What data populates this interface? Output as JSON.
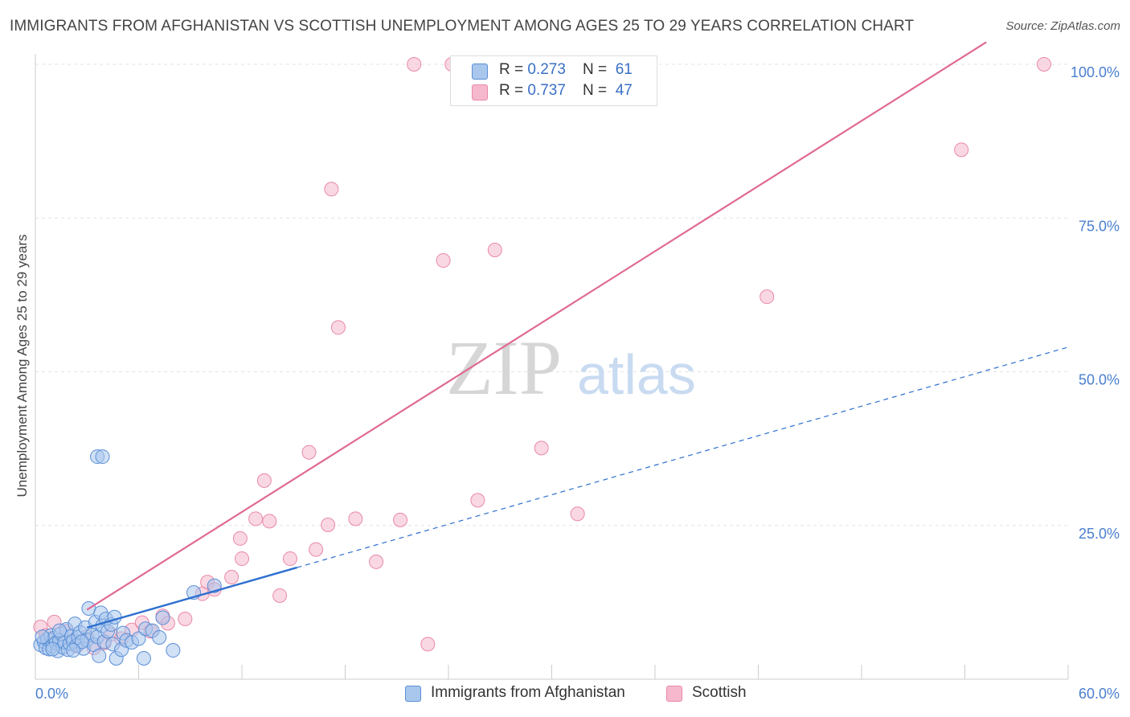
{
  "title": "IMMIGRANTS FROM AFGHANISTAN VS SCOTTISH UNEMPLOYMENT AMONG AGES 25 TO 29 YEARS CORRELATION CHART",
  "source": "Source: ZipAtlas.com",
  "watermark": {
    "zip": "ZIP",
    "atlas": "atlas"
  },
  "legend_top": {
    "rows": [
      {
        "r_label": "R = ",
        "r_value": "0.273",
        "n_label": "N = ",
        "n_value": "61"
      },
      {
        "r_label": "R = ",
        "r_value": "0.737",
        "n_label": "N = ",
        "n_value": "47"
      }
    ]
  },
  "legend_bottom": {
    "items": [
      "Immigrants from Afghanistan",
      "Scottish"
    ]
  },
  "colors": {
    "blue_fill": "#a9c7ec",
    "blue_stroke": "#5b8fd6",
    "blue_line": "#2e6fd0",
    "pink_fill": "#f6b8cc",
    "pink_stroke": "#e889a8",
    "pink_line": "#e06a93",
    "tick_text": "#4a7fcf",
    "grid": "#e3e3e3"
  },
  "chart_data": {
    "type": "scatter",
    "title": "IMMIGRANTS FROM AFGHANISTAN VS SCOTTISH UNEMPLOYMENT AMONG AGES 25 TO 29 YEARS CORRELATION CHART",
    "xlabel": "",
    "ylabel": "Unemployment Among Ages 25 to 29 years",
    "xlim": [
      0,
      60
    ],
    "ylim": [
      0,
      100
    ],
    "x_tick_labels": [
      "0.0%",
      "60.0%"
    ],
    "y_tick_labels": [
      "25.0%",
      "50.0%",
      "75.0%",
      "100.0%"
    ],
    "y_ticks": [
      25,
      50,
      75,
      100
    ],
    "series": [
      {
        "name": "Immigrants from Afghanistan",
        "r": 0.273,
        "n": 61,
        "trend": {
          "x0": 0,
          "y0": 6.0,
          "x1": 60,
          "y1": 54.0,
          "solid_until_x": 15.2
        },
        "points": [
          [
            0.3,
            5.6
          ],
          [
            0.5,
            6.1
          ],
          [
            0.6,
            5.1
          ],
          [
            0.7,
            6.5
          ],
          [
            0.8,
            4.9
          ],
          [
            0.9,
            7.1
          ],
          [
            1.0,
            5.4
          ],
          [
            1.1,
            6.7
          ],
          [
            1.2,
            5.9
          ],
          [
            1.3,
            4.6
          ],
          [
            1.4,
            6.3
          ],
          [
            1.5,
            7.4
          ],
          [
            1.6,
            5.2
          ],
          [
            1.7,
            6.0
          ],
          [
            1.8,
            8.1
          ],
          [
            1.9,
            4.8
          ],
          [
            2.0,
            5.8
          ],
          [
            2.1,
            7.0
          ],
          [
            2.2,
            6.2
          ],
          [
            2.3,
            9.0
          ],
          [
            2.4,
            5.5
          ],
          [
            2.5,
            6.8
          ],
          [
            2.6,
            7.6
          ],
          [
            2.8,
            5.0
          ],
          [
            2.9,
            8.4
          ],
          [
            3.0,
            6.4
          ],
          [
            3.1,
            11.5
          ],
          [
            3.3,
            7.2
          ],
          [
            3.4,
            5.6
          ],
          [
            3.5,
            9.3
          ],
          [
            3.6,
            6.9
          ],
          [
            3.8,
            10.8
          ],
          [
            3.9,
            8.7
          ],
          [
            4.0,
            6.1
          ],
          [
            4.1,
            9.8
          ],
          [
            4.2,
            7.8
          ],
          [
            4.4,
            8.9
          ],
          [
            4.5,
            5.7
          ],
          [
            4.6,
            10.1
          ],
          [
            4.7,
            3.4
          ],
          [
            3.7,
            3.8
          ],
          [
            5.0,
            4.8
          ],
          [
            5.1,
            7.5
          ],
          [
            5.3,
            6.3
          ],
          [
            5.6,
            6.0
          ],
          [
            6.0,
            6.6
          ],
          [
            3.6,
            36.2
          ],
          [
            3.9,
            36.2
          ],
          [
            6.3,
            3.4
          ],
          [
            6.4,
            8.2
          ],
          [
            6.8,
            7.9
          ],
          [
            7.2,
            6.8
          ],
          [
            7.4,
            10.0
          ],
          [
            8.0,
            4.7
          ],
          [
            9.2,
            14.1
          ],
          [
            10.4,
            15.2
          ],
          [
            1.4,
            7.9
          ],
          [
            2.7,
            6.1
          ],
          [
            0.4,
            6.9
          ],
          [
            1.0,
            4.9
          ],
          [
            2.2,
            4.7
          ]
        ]
      },
      {
        "name": "Scottish",
        "r": 0.737,
        "n": 47,
        "trend": {
          "x0": 0,
          "y0": 6.0,
          "x1": 60,
          "y1": 112.0
        },
        "points": [
          [
            0.3,
            8.5
          ],
          [
            0.6,
            7.1
          ],
          [
            1.1,
            9.3
          ],
          [
            1.4,
            6.0
          ],
          [
            1.8,
            7.8
          ],
          [
            2.4,
            5.4
          ],
          [
            3.0,
            6.9
          ],
          [
            3.4,
            5.1
          ],
          [
            4.0,
            5.9
          ],
          [
            4.4,
            7.3
          ],
          [
            5.0,
            6.6
          ],
          [
            5.6,
            8.0
          ],
          [
            6.2,
            9.2
          ],
          [
            6.7,
            7.8
          ],
          [
            7.4,
            10.3
          ],
          [
            7.7,
            9.1
          ],
          [
            8.7,
            9.8
          ],
          [
            9.7,
            13.9
          ],
          [
            10.0,
            15.8
          ],
          [
            10.4,
            14.6
          ],
          [
            11.4,
            16.6
          ],
          [
            11.9,
            22.9
          ],
          [
            12.0,
            19.6
          ],
          [
            12.8,
            26.1
          ],
          [
            13.3,
            32.3
          ],
          [
            13.6,
            25.7
          ],
          [
            14.2,
            13.6
          ],
          [
            14.8,
            19.6
          ],
          [
            15.9,
            36.9
          ],
          [
            16.3,
            21.1
          ],
          [
            17.0,
            25.1
          ],
          [
            17.2,
            79.7
          ],
          [
            17.6,
            57.2
          ],
          [
            18.6,
            26.1
          ],
          [
            19.8,
            19.1
          ],
          [
            21.2,
            25.9
          ],
          [
            22.0,
            100.0
          ],
          [
            22.8,
            5.7
          ],
          [
            23.7,
            68.1
          ],
          [
            24.2,
            100.0
          ],
          [
            25.7,
            29.1
          ],
          [
            26.7,
            69.8
          ],
          [
            29.4,
            37.6
          ],
          [
            31.5,
            26.9
          ],
          [
            42.5,
            62.2
          ],
          [
            53.8,
            86.1
          ],
          [
            58.6,
            100.0
          ]
        ]
      }
    ]
  }
}
